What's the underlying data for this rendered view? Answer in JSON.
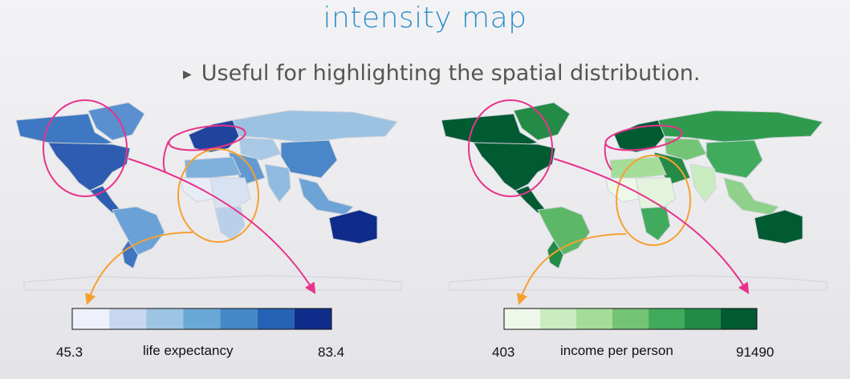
{
  "title": "intensity map",
  "bullet": "Useful for highlighting the spatial distribution.",
  "maps": [
    {
      "legend": {
        "min": "45.3",
        "max": "83.4",
        "label": "life expectancy"
      },
      "palette": [
        "#eef1fb",
        "#c6d7ef",
        "#9cc5e3",
        "#6aa9d6",
        "#4488c8",
        "#2563b4",
        "#0f2c8a"
      ],
      "regions": {
        "north_america": "#2e5cb0",
        "greenland": "#5a8fd0",
        "canada_north": "#3f78c2",
        "south_america": "#6aa1d6",
        "patagonia": "#3f75c0",
        "europe": "#20449e",
        "russia": "#9cc2e2",
        "africa_north": "#7fb0dc",
        "africa_west": "#e8ecf6",
        "africa_central": "#d8e2f2",
        "africa_south": "#b9cfea",
        "middle_east": "#6399d0",
        "india": "#8fbbe0",
        "china": "#4a86c8",
        "central_asia": "#a9c8e6",
        "se_asia": "#6ea3d6",
        "australia": "#0f2c8a",
        "antarctica": "#e8e8ec"
      }
    },
    {
      "legend": {
        "min": "403",
        "max": "91490",
        "label": "income per person"
      },
      "palette": [
        "#eef8ea",
        "#c9ecc1",
        "#a4dd98",
        "#74c476",
        "#41ab5d",
        "#238b45",
        "#005a32"
      ],
      "regions": {
        "north_america": "#005a32",
        "greenland": "#238b45",
        "canada_north": "#005a32",
        "south_america": "#5cb866",
        "patagonia": "#238b45",
        "europe": "#005a32",
        "russia": "#2f9a4e",
        "africa_north": "#a4dd98",
        "africa_west": "#eef8ea",
        "africa_central": "#e3f3dc",
        "africa_south": "#41ab5d",
        "middle_east": "#238b45",
        "india": "#c9ecc1",
        "china": "#41ab5d",
        "central_asia": "#74c476",
        "se_asia": "#8fd18a",
        "australia": "#005a32",
        "antarctica": "#e8e8ec"
      }
    }
  ],
  "annotation_colors": {
    "circle_pink": "#e8338b",
    "circle_orange": "#f5a030"
  }
}
